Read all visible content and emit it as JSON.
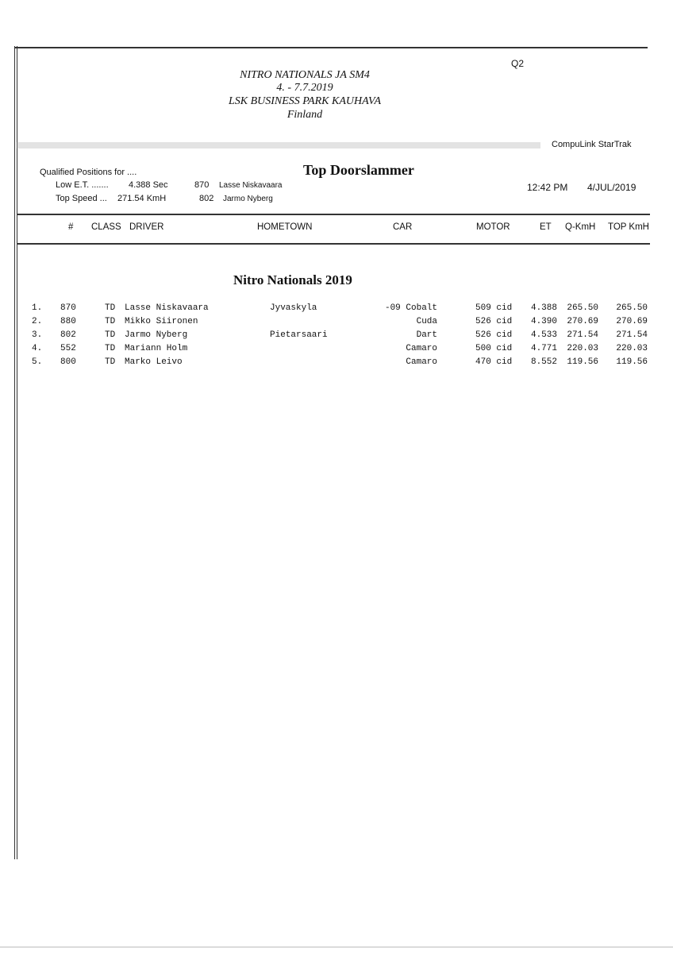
{
  "event": {
    "session": "Q2",
    "title": "NITRO NATIONALS JA SM4",
    "dates": "4. - 7.7.2019",
    "venue": "LSK BUSINESS PARK KAUHAVA",
    "country": "Finland",
    "system": "CompuLink  StarTrak"
  },
  "summary": {
    "qualified_label": "Qualified Positions for ....",
    "class_title": "Top Doorslammer",
    "low_et_label": "Low E.T. .......",
    "low_et_value": "4.388  Sec",
    "low_et_car": "870",
    "low_et_driver": "Lasse Niskavaara",
    "top_speed_label": "Top Speed ...",
    "top_speed_value": "271.54  KmH",
    "top_speed_car": "802",
    "top_speed_driver": "Jarmo Nyberg",
    "time": "12:42 PM",
    "date": "4/JUL/2019"
  },
  "columns": [
    "#",
    "CLASS",
    "DRIVER",
    "HOMETOWN",
    "CAR",
    "MOTOR",
    "ET",
    "Q-KmH",
    "TOP KmH"
  ],
  "section_title": "Nitro Nationals 2019",
  "rows": [
    {
      "pos": "1.",
      "num": "870",
      "cls": "TD",
      "driver": "Lasse Niskavaara",
      "hometown": "Jyvaskyla",
      "car": "-09 Cobalt",
      "motor": "509 cid",
      "et": "4.388",
      "q": "265.50",
      "top": "265.50"
    },
    {
      "pos": "2.",
      "num": "880",
      "cls": "TD",
      "driver": "Mikko Siironen",
      "hometown": "",
      "car": "Cuda",
      "motor": "526 cid",
      "et": "4.390",
      "q": "270.69",
      "top": "270.69"
    },
    {
      "pos": "3.",
      "num": "802",
      "cls": "TD",
      "driver": "Jarmo Nyberg",
      "hometown": "Pietarsaari",
      "car": "Dart",
      "motor": "526 cid",
      "et": "4.533",
      "q": "271.54",
      "top": "271.54"
    },
    {
      "pos": "4.",
      "num": "552",
      "cls": "TD",
      "driver": "Mariann Holm",
      "hometown": "",
      "car": "Camaro",
      "motor": "500 cid",
      "et": "4.771",
      "q": "220.03",
      "top": "220.03"
    },
    {
      "pos": "5.",
      "num": "800",
      "cls": "TD",
      "driver": "Marko Leivo",
      "hometown": "",
      "car": "Camaro",
      "motor": "470 cid",
      "et": "8.552",
      "q": "119.56",
      "top": "119.56"
    }
  ]
}
